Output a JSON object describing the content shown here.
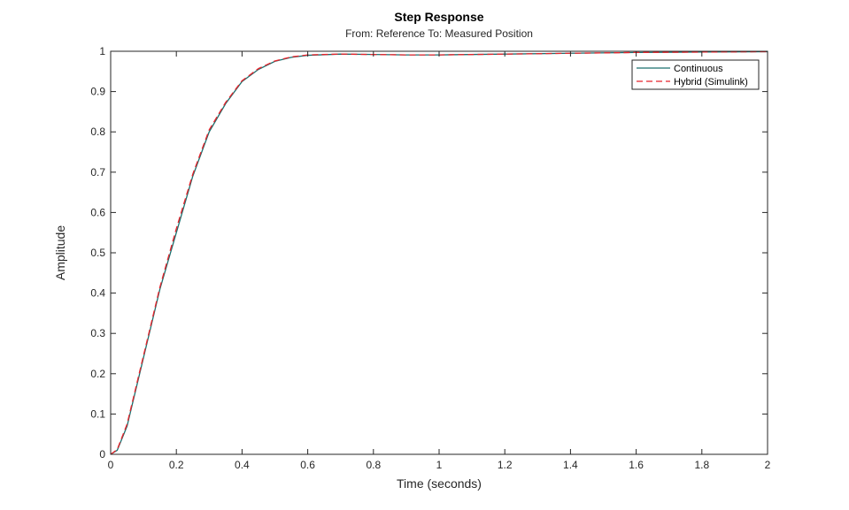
{
  "chart_data": {
    "type": "line",
    "title": "Step Response",
    "subtitle": "From: Reference  To: Measured Position",
    "xlabel": "Time (seconds)",
    "ylabel": "Amplitude",
    "xlim": [
      0,
      2
    ],
    "ylim": [
      0,
      1
    ],
    "x_ticks": [
      0,
      0.2,
      0.4,
      0.6,
      0.8,
      1,
      1.2,
      1.4,
      1.6,
      1.8,
      2
    ],
    "x_tick_labels": [
      "0",
      "0.2",
      "0.4",
      "0.6",
      "0.8",
      "1",
      "1.2",
      "1.4",
      "1.6",
      "1.8",
      "2"
    ],
    "y_ticks": [
      0,
      0.1,
      0.2,
      0.3,
      0.4,
      0.5,
      0.6,
      0.7,
      0.8,
      0.9,
      1
    ],
    "y_tick_labels": [
      "0",
      "0.1",
      "0.2",
      "0.3",
      "0.4",
      "0.5",
      "0.6",
      "0.7",
      "0.8",
      "0.9",
      "1"
    ],
    "grid": false,
    "legend_position": "top-right",
    "reference_line": {
      "y": 1,
      "style": "dotted",
      "color": "#000000"
    },
    "series": [
      {
        "name": "Continuous",
        "color": "#1b6f6e",
        "style": "solid",
        "x": [
          0,
          0.02,
          0.05,
          0.1,
          0.15,
          0.2,
          0.25,
          0.3,
          0.35,
          0.4,
          0.45,
          0.5,
          0.55,
          0.6,
          0.7,
          0.8,
          0.9,
          1.0,
          1.2,
          1.4,
          1.6,
          1.8,
          2.0
        ],
        "y": [
          0,
          0.01,
          0.07,
          0.24,
          0.41,
          0.55,
          0.69,
          0.8,
          0.87,
          0.925,
          0.955,
          0.975,
          0.985,
          0.99,
          0.993,
          0.992,
          0.991,
          0.991,
          0.993,
          0.995,
          0.997,
          0.998,
          0.999
        ]
      },
      {
        "name": "Hybrid (Simulink)",
        "color": "#e8232b",
        "style": "dashed",
        "x": [
          0,
          0.02,
          0.05,
          0.1,
          0.15,
          0.2,
          0.25,
          0.3,
          0.35,
          0.4,
          0.45,
          0.5,
          0.55,
          0.6,
          0.7,
          0.8,
          0.9,
          1.0,
          1.2,
          1.4,
          1.6,
          1.8,
          2.0
        ],
        "y": [
          0,
          0.012,
          0.075,
          0.245,
          0.415,
          0.56,
          0.695,
          0.805,
          0.873,
          0.927,
          0.957,
          0.976,
          0.986,
          0.991,
          0.993,
          0.992,
          0.991,
          0.991,
          0.993,
          0.995,
          0.997,
          0.998,
          0.999
        ]
      }
    ]
  }
}
